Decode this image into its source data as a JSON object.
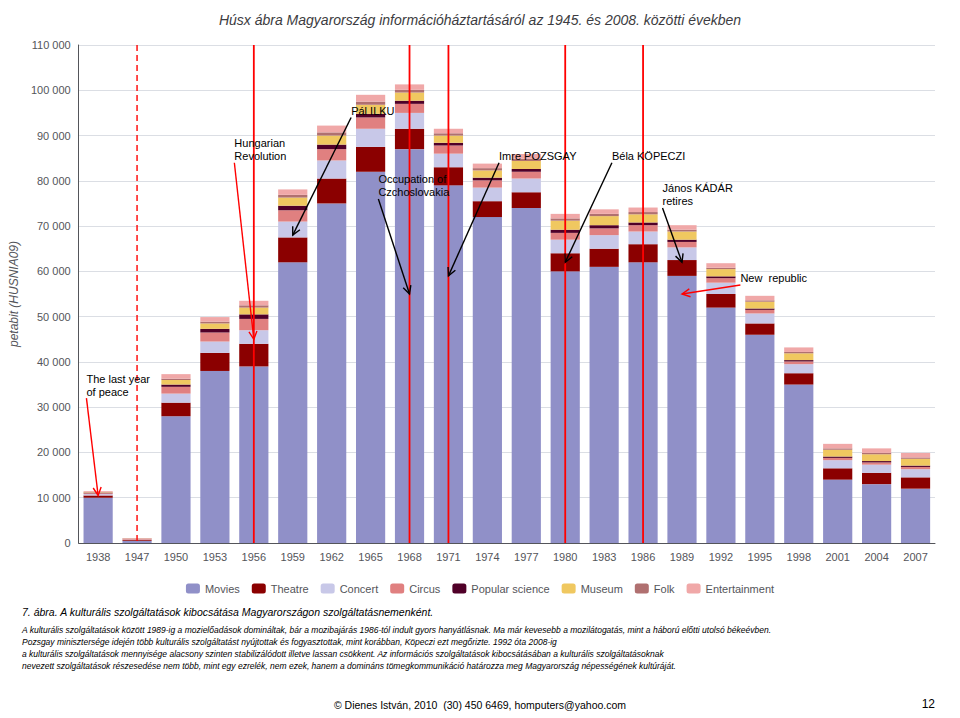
{
  "chart_data": {
    "type": "bar",
    "title": "Húsx ábra Magyarország információháztartásáról az 1945. és 2008. közötti években",
    "y_label": "petabit (HUSNIA09)",
    "categories": [
      "1938",
      "1947",
      "1950",
      "1953",
      "1956",
      "1959",
      "1962",
      "1965",
      "1968",
      "1971",
      "1974",
      "1977",
      "1980",
      "1983",
      "1986",
      "1989",
      "1992",
      "1995",
      "1998",
      "2001",
      "2004",
      "2007"
    ],
    "stacked": true,
    "grid": true,
    "legend": "bottom",
    "ylim": [
      0,
      110000
    ],
    "yticks": [
      0,
      {
        "value": 10000,
        "label": "10 000"
      },
      {
        "value": 20000,
        "label": "20 000"
      },
      {
        "value": 30000,
        "label": "30 000"
      },
      {
        "value": 40000,
        "label": "40 000"
      },
      {
        "value": 50000,
        "label": "50 000"
      },
      {
        "value": 60000,
        "label": "60 000"
      },
      {
        "value": 70000,
        "label": "70 000"
      },
      {
        "value": 80000,
        "label": "80 000"
      },
      {
        "value": 90000,
        "label": "90 000"
      },
      {
        "value": 100000,
        "label": "100 000"
      },
      {
        "value": 110000,
        "label": "110 000"
      }
    ],
    "series": [
      {
        "name": "Movies",
        "color": "#9090C8",
        "values": [
          10000,
          500,
          28000,
          38000,
          39000,
          62000,
          75000,
          82000,
          87000,
          79000,
          72000,
          74000,
          60000,
          61000,
          62000,
          59000,
          52000,
          46000,
          35000,
          14000,
          13000,
          12000
        ]
      },
      {
        "name": "Theatre",
        "color": "#8B0000",
        "values": [
          500,
          200,
          3000,
          4000,
          5000,
          5500,
          5500,
          5500,
          4500,
          4000,
          3500,
          3500,
          4000,
          4000,
          4000,
          3500,
          3000,
          2500,
          2500,
          2500,
          2500,
          2500
        ]
      },
      {
        "name": "Concert",
        "color": "#C8C8E8",
        "values": [
          300,
          100,
          2000,
          2500,
          3000,
          3500,
          4000,
          4000,
          3500,
          3000,
          3000,
          3000,
          3000,
          3000,
          2800,
          2800,
          2500,
          2200,
          2000,
          1800,
          1800,
          1800
        ]
      },
      {
        "name": "Circus",
        "color": "#E08080",
        "values": [
          200,
          100,
          1500,
          2000,
          2500,
          2500,
          2500,
          2500,
          2000,
          1800,
          1600,
          1500,
          1500,
          1500,
          1400,
          1200,
          1000,
          800,
          600,
          500,
          500,
          500
        ]
      },
      {
        "name": "Popular science",
        "color": "#500028",
        "values": [
          100,
          50,
          500,
          800,
          1000,
          1000,
          1000,
          800,
          700,
          600,
          600,
          600,
          700,
          700,
          600,
          500,
          400,
          300,
          300,
          300,
          300,
          300
        ]
      },
      {
        "name": "Museum",
        "color": "#F0C860",
        "values": [
          100,
          50,
          1000,
          1200,
          1500,
          1800,
          2000,
          2000,
          1800,
          1600,
          1600,
          1800,
          2000,
          2000,
          1800,
          1800,
          1600,
          1500,
          1500,
          1500,
          1500,
          1500
        ]
      },
      {
        "name": "Folk",
        "color": "#B07070",
        "values": [
          50,
          20,
          300,
          400,
          500,
          600,
          700,
          700,
          600,
          500,
          500,
          500,
          500,
          500,
          500,
          400,
          300,
          300,
          300,
          300,
          300,
          300
        ]
      },
      {
        "name": "Entertainment",
        "color": "#F0A8A8",
        "values": [
          200,
          100,
          1000,
          1000,
          1000,
          1200,
          1500,
          1500,
          1200,
          1000,
          1000,
          1000,
          1000,
          1000,
          1000,
          1000,
          1000,
          1000,
          1000,
          1000,
          1000,
          1000
        ]
      }
    ],
    "vlines": [
      {
        "at": "1956",
        "color": "red",
        "line_style": "solid"
      },
      {
        "at": "1968",
        "color": "red",
        "line_style": "solid"
      },
      {
        "at": "1971",
        "color": "red",
        "line_style": "solid"
      },
      {
        "at": "1980",
        "color": "red",
        "line_style": "solid"
      },
      {
        "at": "1986",
        "color": "red",
        "line_style": "solid"
      },
      {
        "at": "1947",
        "color": "red",
        "line_style": "dashed"
      }
    ],
    "annotations": [
      {
        "text": "The last year\nof peace",
        "at": "1938",
        "y": 10500,
        "text_dx": -0.3,
        "text_y": 32000,
        "color": "red"
      },
      {
        "text": "Hungarian\nRevolution",
        "at": "1956",
        "y": 45000,
        "text_dx": -0.5,
        "text_y": 84000,
        "color": "red"
      },
      {
        "text": "Pál ILKU",
        "at": "1959",
        "y": 68000,
        "text_dx": 1.5,
        "text_y": 94000,
        "color": "black"
      },
      {
        "text": "Occupation of\nCzchoslovakia",
        "at": "1968",
        "y": 55000,
        "text_dx": -0.8,
        "text_y": 76000,
        "color": "black"
      },
      {
        "text": "Imre POZSGAY",
        "at": "1971",
        "y": 59000,
        "text_dx": 1.3,
        "text_y": 84000,
        "color": "black"
      },
      {
        "text": "Béla KÖPECZI",
        "at": "1980",
        "y": 62000,
        "text_dx": 1.2,
        "text_y": 84000,
        "color": "black"
      },
      {
        "text": "János KÁDÁR\nretires",
        "at": "1989",
        "y": 62000,
        "text_dx": -0.5,
        "text_y": 74000,
        "color": "black"
      },
      {
        "text": "New  republic",
        "at": "1989",
        "y": 55000,
        "text_dx": 1.5,
        "text_y": 57000,
        "color": "red"
      }
    ],
    "caption": "7. ábra. A kulturális szolgáltatások kibocsátása Magyarországon szolgáltatásnemenként.",
    "notes": [
      "A kulturális szolgáltatások között 1989-ig a mozielőadások domináltak, bár a mozibajárás 1986-tól indult gyors hanyátlásnak. Ma már kevesebb a mozilátogatás, mint a háború előtti utolsó békeévben.",
      "Pozsgay minisztersége idején több kulturális szolgáltatást nyújtottak és fogyasztottak, mint korábban, Köpeczi ezt megőrizte. 1992 óta 2008-ig",
      "a kulturális szolgáltatások mennyisége alacsony szinten stabilizálódott illetve lassan csökkent. Az információs szolgáltatások kibocsátásában a kulturális szolgáltatásoknak",
      "nevezett szolgáltatások részesedése nem több, mint egy ezrelék, nem ezek, hanem a domináns tömegkommunikáció határozza meg Magyarország népességének kultúráját."
    ],
    "copyright": "© Dienes István, 2010  (30) 450 6469, homputers@yahoo.com",
    "page_number": "12"
  }
}
